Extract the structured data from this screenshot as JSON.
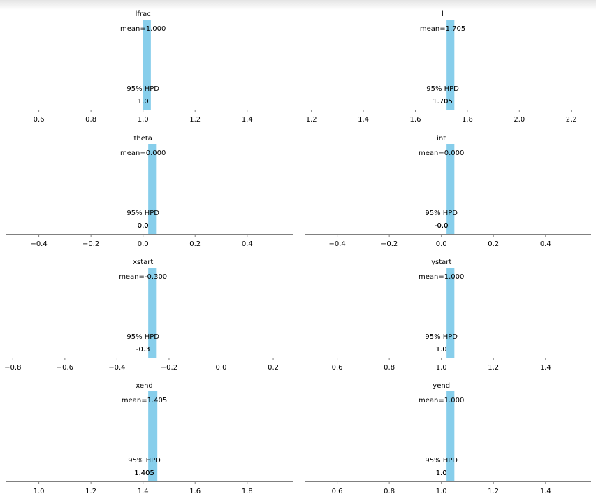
{
  "chart_data": {
    "type": "bar",
    "bar_color": "#87ceeb",
    "axis_color": "#808080",
    "grid": false,
    "panels": [
      {
        "title": "lfrac",
        "mean": 1.0,
        "mean_label": "mean=1.000",
        "hpd_label": "95% HPD",
        "hpd_low_label": "1.0",
        "hpd_high_label": "1.0",
        "xlim": [
          0.475,
          1.575
        ],
        "xticks": [
          0.6,
          0.8,
          1.0,
          1.2,
          1.4
        ],
        "xtick_labels": [
          "0.6",
          "0.8",
          "1.0",
          "1.2",
          "1.4"
        ],
        "bar": [
          1.0,
          1.03
        ]
      },
      {
        "title": "l",
        "mean": 1.705,
        "mean_label": "mean=1.705",
        "hpd_label": "95% HPD",
        "hpd_low_label": "1.705",
        "hpd_high_label": "1.705",
        "xlim": [
          1.174,
          2.276
        ],
        "xticks": [
          1.2,
          1.4,
          1.6,
          1.8,
          2.0,
          2.2
        ],
        "xtick_labels": [
          "1.2",
          "1.4",
          "1.6",
          "1.8",
          "2.0",
          "2.2"
        ],
        "bar": [
          1.72,
          1.75
        ]
      },
      {
        "title": "theta",
        "mean": 0.0,
        "mean_label": "mean=0.000",
        "hpd_label": "95% HPD",
        "hpd_low_label": "0.0",
        "hpd_high_label": "0.0",
        "xlim": [
          -0.525,
          0.575
        ],
        "xticks": [
          -0.4,
          -0.2,
          0.0,
          0.2,
          0.4
        ],
        "xtick_labels": [
          "−0.4",
          "−0.2",
          "0.0",
          "0.2",
          "0.4"
        ],
        "bar": [
          0.02,
          0.05
        ]
      },
      {
        "title": "int",
        "mean": 0.0,
        "mean_label": "mean=0.000",
        "hpd_label": "95% HPD",
        "hpd_low_label": "-0.0",
        "hpd_high_label": "-0.0",
        "xlim": [
          -0.525,
          0.575
        ],
        "xticks": [
          -0.4,
          -0.2,
          0.0,
          0.2,
          0.4
        ],
        "xtick_labels": [
          "−0.4",
          "−0.2",
          "0.0",
          "0.2",
          "0.4"
        ],
        "bar": [
          0.02,
          0.05
        ]
      },
      {
        "title": "xstart",
        "mean": -0.3,
        "mean_label": "mean=-0.300",
        "hpd_label": "95% HPD",
        "hpd_low_label": "-0.3",
        "hpd_high_label": "-0.3",
        "xlim": [
          -0.825,
          0.275
        ],
        "xticks": [
          -0.8,
          -0.6,
          -0.4,
          -0.2,
          0.0,
          0.2
        ],
        "xtick_labels": [
          "−0.8",
          "−0.6",
          "−0.4",
          "−0.2",
          "0.0",
          "0.2"
        ],
        "bar": [
          -0.28,
          -0.25
        ]
      },
      {
        "title": "ystart",
        "mean": 1.0,
        "mean_label": "mean=1.000",
        "hpd_label": "95% HPD",
        "hpd_low_label": "1.0",
        "hpd_high_label": "1.0",
        "xlim": [
          0.475,
          1.575
        ],
        "xticks": [
          0.6,
          0.8,
          1.0,
          1.2,
          1.4
        ],
        "xtick_labels": [
          "0.6",
          "0.8",
          "1.0",
          "1.2",
          "1.4"
        ],
        "bar": [
          1.02,
          1.05
        ]
      },
      {
        "title": "xend",
        "mean": 1.405,
        "mean_label": "mean=1.405",
        "hpd_label": "95% HPD",
        "hpd_low_label": "1.405",
        "hpd_high_label": "1.405",
        "xlim": [
          0.875,
          1.975
        ],
        "xticks": [
          1.0,
          1.2,
          1.4,
          1.6,
          1.8
        ],
        "xtick_labels": [
          "1.0",
          "1.2",
          "1.4",
          "1.6",
          "1.8"
        ],
        "bar": [
          1.42,
          1.455
        ]
      },
      {
        "title": "yend",
        "mean": 1.0,
        "mean_label": "mean=1.000",
        "hpd_label": "95% HPD",
        "hpd_low_label": "1.0",
        "hpd_high_label": "1.0",
        "xlim": [
          0.475,
          1.575
        ],
        "xticks": [
          0.6,
          0.8,
          1.0,
          1.2,
          1.4
        ],
        "xtick_labels": [
          "0.6",
          "0.8",
          "1.0",
          "1.2",
          "1.4"
        ],
        "bar": [
          1.02,
          1.05
        ]
      }
    ]
  }
}
